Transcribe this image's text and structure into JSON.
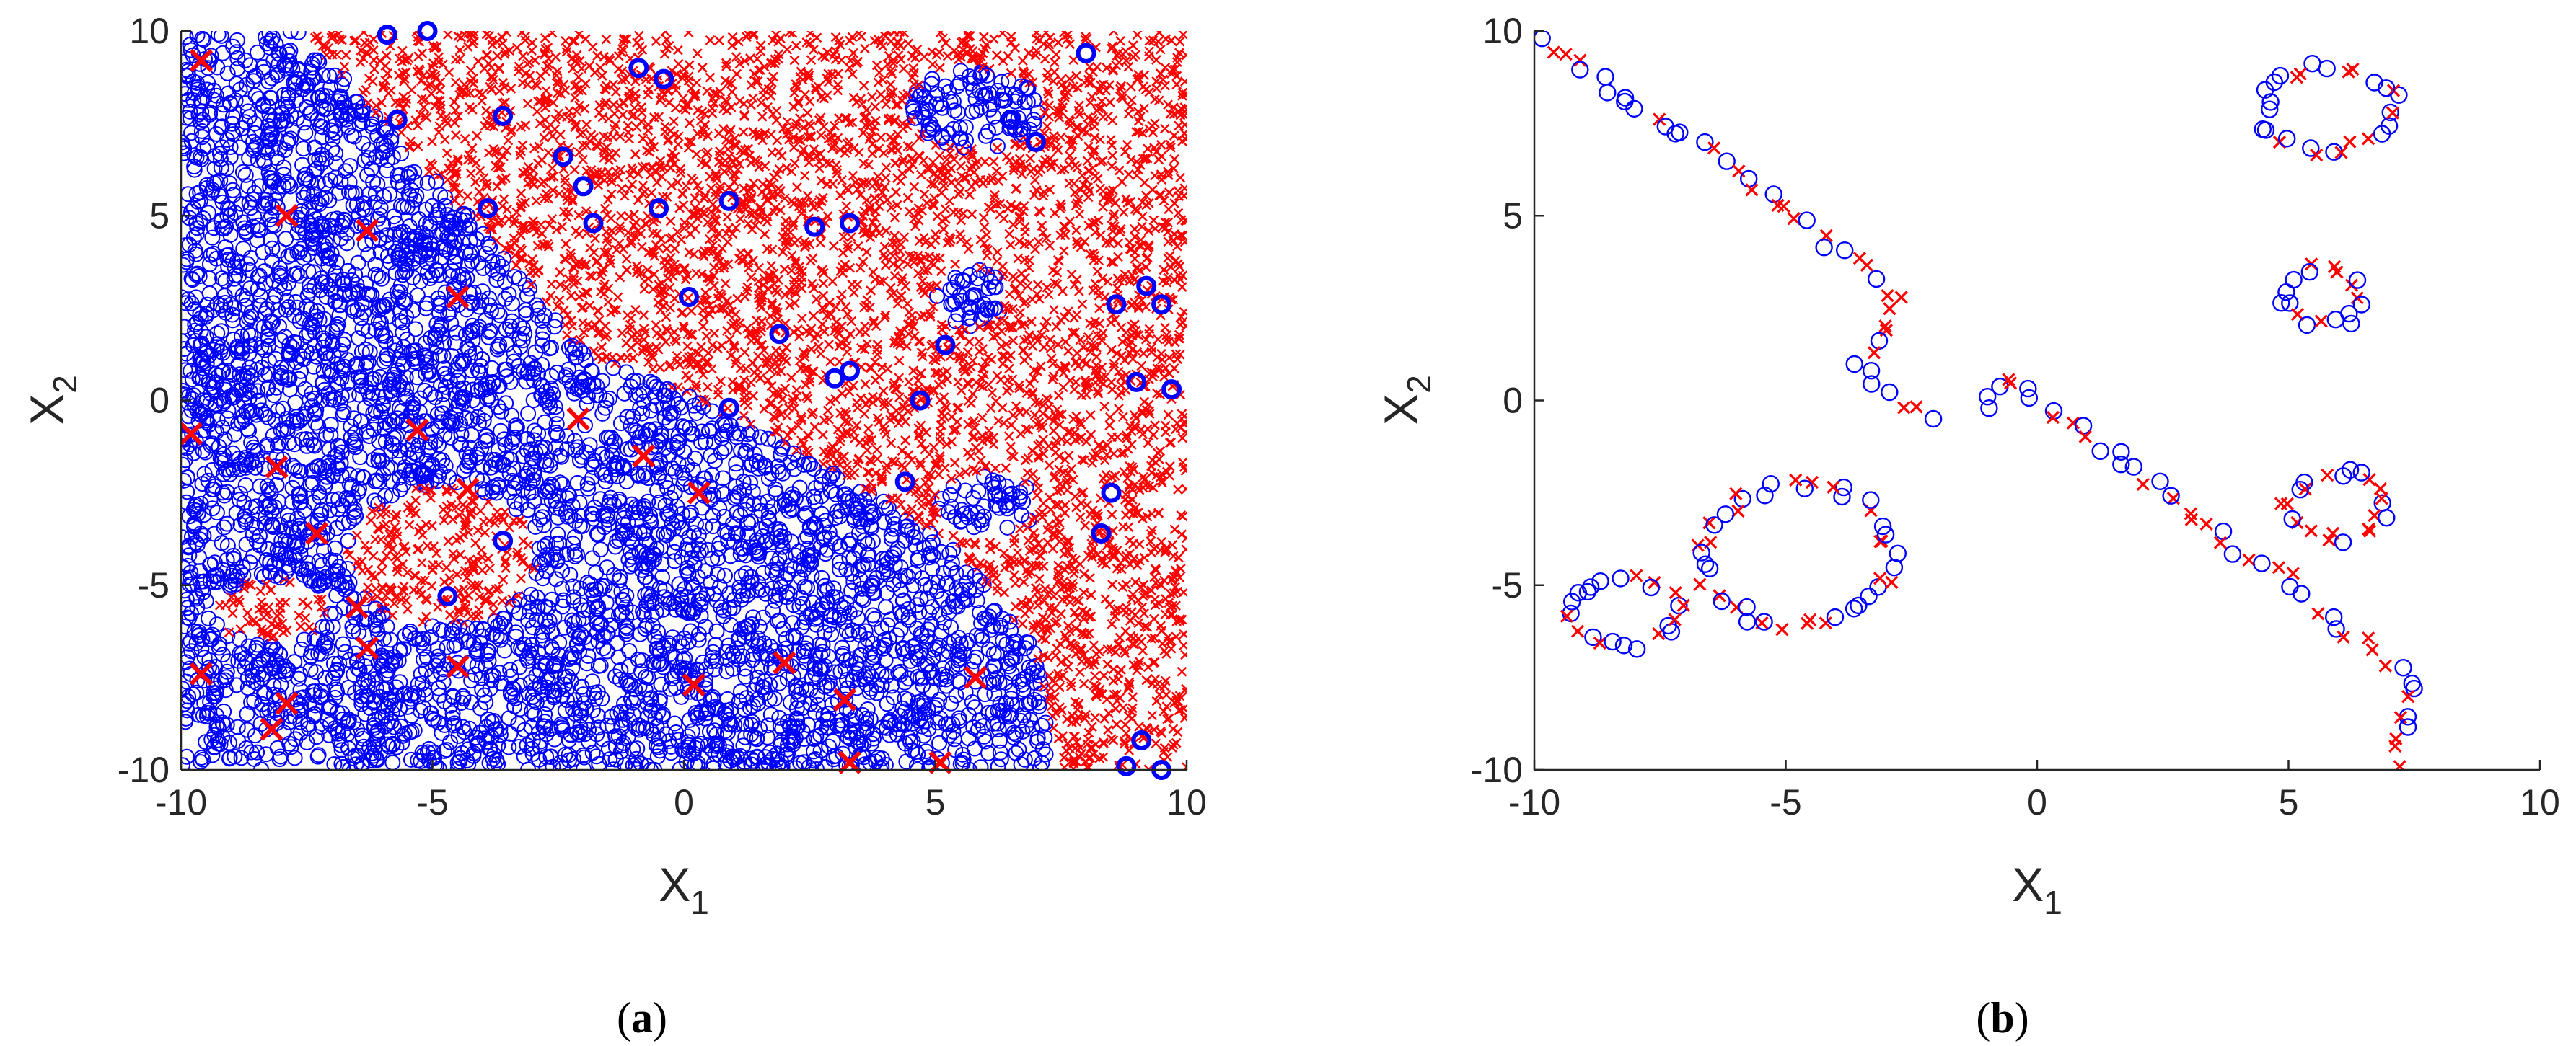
{
  "chart_data": [
    {
      "type": "scatter",
      "caption": {
        "open": "(",
        "letter": "a",
        "close": ")"
      },
      "xlabel": {
        "main": "X",
        "sub": "1"
      },
      "ylabel": {
        "main": "X",
        "sub": "2"
      },
      "xlim": [
        -10,
        10
      ],
      "ylim": [
        -10,
        10
      ],
      "xticks": [
        "-10",
        "-5",
        "0",
        "5",
        "10"
      ],
      "yticks": [
        "-10",
        "-5",
        "0",
        "5",
        "10"
      ],
      "grid": false,
      "legend": "none",
      "colors": {
        "class_o": "#0000ff",
        "class_x": "#ff0000"
      },
      "regions": {
        "description_free_note": "",
        "boundary_polyline": [
          [
            -7.6,
            10
          ],
          [
            -2.5,
            2.3
          ],
          [
            -2.5,
            1.9
          ],
          [
            -1.6,
            1.0
          ],
          [
            0.0,
            0.2
          ],
          [
            3.0,
            -1.9
          ],
          [
            5.5,
            -4.0
          ],
          [
            7.0,
            -6.8
          ],
          [
            7.4,
            -10
          ]
        ],
        "x_islands": [
          {
            "cx": -8.2,
            "cy": -5.7,
            "rx": 1.1,
            "ry": 0.9
          },
          {
            "cx": -4.8,
            "cy": -4.2,
            "rx": 1.9,
            "ry": 1.9
          }
        ],
        "o_islands": [
          {
            "cx": 5.8,
            "cy": 7.9,
            "rx": 1.3,
            "ry": 1.1
          },
          {
            "cx": 5.7,
            "cy": 2.8,
            "rx": 0.7,
            "ry": 0.8
          },
          {
            "cx": 6.0,
            "cy": -2.8,
            "rx": 1.0,
            "ry": 0.9
          }
        ]
      },
      "series": [
        {
          "marker": "o",
          "color": "#0000ff",
          "noise_points": [
            [
              -5.9,
              9.9
            ],
            [
              -5.1,
              10.0
            ],
            [
              -5.7,
              7.6
            ],
            [
              -3.6,
              7.7
            ],
            [
              -0.9,
              9.0
            ],
            [
              -0.4,
              8.7
            ],
            [
              -3.9,
              5.2
            ],
            [
              -2.4,
              6.6
            ],
            [
              -2.0,
              5.8
            ],
            [
              -1.8,
              4.8
            ],
            [
              -0.5,
              5.2
            ],
            [
              0.1,
              2.8
            ],
            [
              0.9,
              5.4
            ],
            [
              2.6,
              4.7
            ],
            [
              3.3,
              4.8
            ],
            [
              1.9,
              1.8
            ],
            [
              3.0,
              0.6
            ],
            [
              3.3,
              0.8
            ],
            [
              0.9,
              -0.2
            ],
            [
              4.7,
              0.0
            ],
            [
              4.4,
              -2.2
            ],
            [
              5.2,
              1.5
            ],
            [
              7.0,
              7.0
            ],
            [
              6.5,
              7.6
            ],
            [
              8.0,
              9.4
            ],
            [
              8.6,
              2.6
            ],
            [
              9.2,
              3.1
            ],
            [
              9.5,
              2.6
            ],
            [
              9.0,
              0.5
            ],
            [
              9.7,
              0.3
            ],
            [
              8.5,
              -2.5
            ],
            [
              8.3,
              -3.6
            ],
            [
              8.8,
              -9.9
            ],
            [
              9.1,
              -9.2
            ],
            [
              9.5,
              -10.0
            ],
            [
              -5.2,
              -2.0
            ],
            [
              -3.6,
              -3.8
            ],
            [
              -4.7,
              -5.3
            ]
          ]
        },
        {
          "marker": "x",
          "color": "#ff0000",
          "noise_points": [
            [
              -9.6,
              9.2
            ],
            [
              -7.9,
              5.0
            ],
            [
              -6.3,
              4.6
            ],
            [
              -4.5,
              2.8
            ],
            [
              -9.8,
              -0.9
            ],
            [
              -7.3,
              -3.6
            ],
            [
              -8.1,
              -1.8
            ],
            [
              -5.3,
              -0.8
            ],
            [
              -4.3,
              -2.4
            ],
            [
              -2.1,
              -0.5
            ],
            [
              -0.8,
              -1.5
            ],
            [
              0.3,
              -2.5
            ],
            [
              -6.5,
              -5.6
            ],
            [
              -6.3,
              -6.7
            ],
            [
              -4.5,
              -7.2
            ],
            [
              -9.6,
              -7.4
            ],
            [
              -7.9,
              -8.2
            ],
            [
              -8.2,
              -8.9
            ],
            [
              0.2,
              -7.7
            ],
            [
              2.0,
              -7.1
            ],
            [
              3.2,
              -8.1
            ],
            [
              3.3,
              -9.8
            ],
            [
              5.1,
              -9.8
            ],
            [
              5.8,
              -7.5
            ]
          ]
        }
      ]
    },
    {
      "type": "scatter",
      "caption": {
        "open": "(",
        "letter": "b",
        "close": ")"
      },
      "xlabel": {
        "main": "X",
        "sub": "1"
      },
      "ylabel": {
        "main": "X",
        "sub": "2"
      },
      "xlim": [
        -10,
        10
      ],
      "ylim": [
        -10,
        10
      ],
      "xticks": [
        "-10",
        "-5",
        "0",
        "5",
        "10"
      ],
      "yticks": [
        "-10",
        "-5",
        "0",
        "5",
        "10"
      ],
      "grid": false,
      "legend": "none",
      "boundary_paths": [
        {
          "type": "polyline",
          "points": [
            [
              -9.9,
              9.8
            ],
            [
              -8.5,
              8.5
            ],
            [
              -7.2,
              7.3
            ],
            [
              -6.0,
              6.3
            ],
            [
              -5.0,
              5.2
            ],
            [
              -3.9,
              4.0
            ],
            [
              -3.2,
              3.3
            ],
            [
              -2.7,
              2.7
            ],
            [
              -3.0,
              1.6
            ],
            [
              -3.5,
              1.0
            ],
            [
              -3.2,
              0.3
            ],
            [
              -2.5,
              -0.3
            ],
            [
              -1.9,
              -0.6
            ]
          ]
        },
        {
          "type": "polyline",
          "points": [
            [
              -1.1,
              -0.1
            ],
            [
              -0.7,
              0.6
            ],
            [
              0.0,
              0.0
            ],
            [
              1.0,
              -1.0
            ],
            [
              2.0,
              -1.9
            ],
            [
              3.0,
              -2.9
            ],
            [
              4.0,
              -4.0
            ],
            [
              5.0,
              -4.8
            ],
            [
              5.8,
              -5.9
            ],
            [
              6.5,
              -6.6
            ],
            [
              7.0,
              -7.1
            ],
            [
              7.4,
              -7.6
            ],
            [
              7.3,
              -8.7
            ],
            [
              7.0,
              -9.5
            ],
            [
              7.1,
              -10.0
            ]
          ]
        },
        {
          "type": "ellipse",
          "cx": -8.2,
          "cy": -5.7,
          "rx": 1.1,
          "ry": 0.9
        },
        {
          "type": "ellipse",
          "cx": -4.8,
          "cy": -4.2,
          "rx": 1.9,
          "ry": 1.9
        },
        {
          "type": "ellipse",
          "cx": 5.8,
          "cy": 7.9,
          "rx": 1.3,
          "ry": 1.1
        },
        {
          "type": "ellipse",
          "cx": 5.7,
          "cy": 2.8,
          "rx": 0.7,
          "ry": 0.8
        },
        {
          "type": "ellipse",
          "cx": 6.0,
          "cy": -2.8,
          "rx": 1.0,
          "ry": 0.9
        }
      ],
      "series": [
        {
          "marker": "o",
          "color": "#0000ff"
        },
        {
          "marker": "x",
          "color": "#ff0000"
        }
      ]
    }
  ]
}
